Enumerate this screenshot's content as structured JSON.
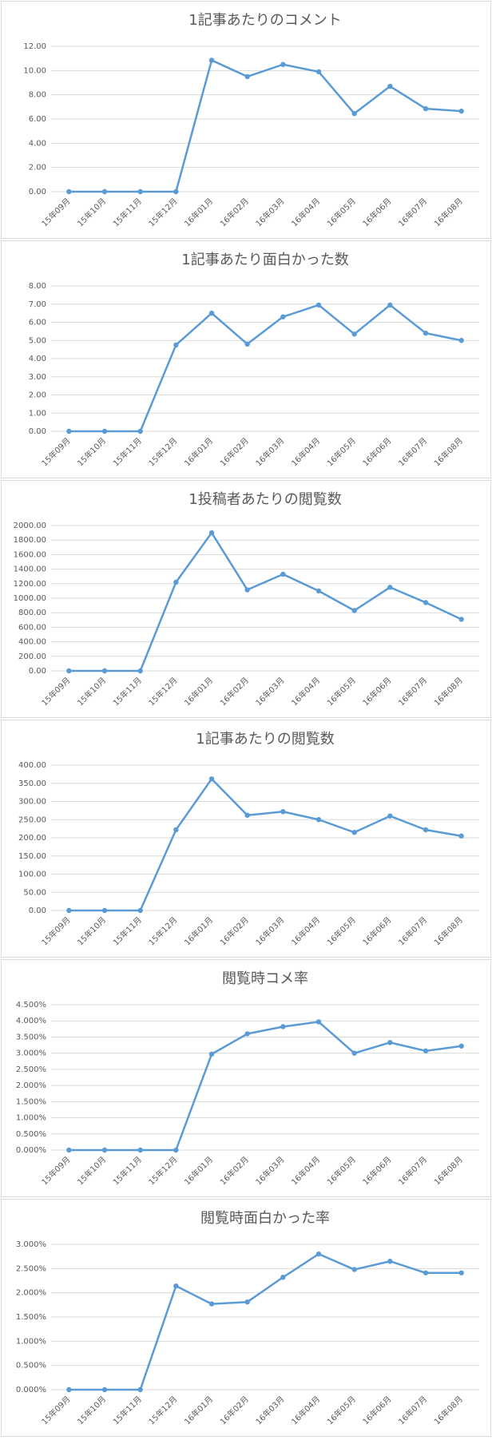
{
  "chart_data": [
    {
      "type": "line",
      "title": "1記事あたりのコメント",
      "color": "#5b9bd5",
      "grid": true,
      "categories": [
        "15年09月",
        "15年10月",
        "15年11月",
        "15年12月",
        "16年01月",
        "16年02月",
        "16年03月",
        "16年04月",
        "16年05月",
        "16年06月",
        "16年07月",
        "16年08月"
      ],
      "values": [
        0,
        0,
        0,
        0,
        10.85,
        9.5,
        10.5,
        9.9,
        6.45,
        8.7,
        6.85,
        6.65
      ],
      "ylim": [
        0,
        12
      ],
      "yticks": [
        {
          "value": 0,
          "label": "0.00"
        },
        {
          "value": 2,
          "label": "2.00"
        },
        {
          "value": 4,
          "label": "4.00"
        },
        {
          "value": 6,
          "label": "6.00"
        },
        {
          "value": 8,
          "label": "8.00"
        },
        {
          "value": 10,
          "label": "10.00"
        },
        {
          "value": 12,
          "label": "12.00"
        }
      ]
    },
    {
      "type": "line",
      "title": "1記事あたり面白かった数",
      "color": "#5b9bd5",
      "grid": true,
      "categories": [
        "15年09月",
        "15年10月",
        "15年11月",
        "15年12月",
        "16年01月",
        "16年02月",
        "16年03月",
        "16年04月",
        "16年05月",
        "16年06月",
        "16年07月",
        "16年08月"
      ],
      "values": [
        0,
        0,
        0,
        4.75,
        6.5,
        4.8,
        6.3,
        6.95,
        5.35,
        6.95,
        5.4,
        5.0
      ],
      "ylim": [
        0,
        8
      ],
      "yticks": [
        {
          "value": 0,
          "label": "0.00"
        },
        {
          "value": 1,
          "label": "1.00"
        },
        {
          "value": 2,
          "label": "2.00"
        },
        {
          "value": 3,
          "label": "3.00"
        },
        {
          "value": 4,
          "label": "4.00"
        },
        {
          "value": 5,
          "label": "5.00"
        },
        {
          "value": 6,
          "label": "6.00"
        },
        {
          "value": 7,
          "label": "7.00"
        },
        {
          "value": 8,
          "label": "8.00"
        }
      ]
    },
    {
      "type": "line",
      "title": "1投稿者あたりの閲覧数",
      "color": "#5b9bd5",
      "grid": true,
      "categories": [
        "15年09月",
        "15年10月",
        "15年11月",
        "15年12月",
        "16年01月",
        "16年02月",
        "16年03月",
        "16年04月",
        "16年05月",
        "16年06月",
        "16年07月",
        "16年08月"
      ],
      "values": [
        0,
        0,
        0,
        1220,
        1900,
        1115,
        1330,
        1100,
        830,
        1150,
        940,
        710
      ],
      "ylim": [
        0,
        2000
      ],
      "yticks": [
        {
          "value": 0,
          "label": "0.00"
        },
        {
          "value": 200,
          "label": "200.00"
        },
        {
          "value": 400,
          "label": "400.00"
        },
        {
          "value": 600,
          "label": "600.00"
        },
        {
          "value": 800,
          "label": "800.00"
        },
        {
          "value": 1000,
          "label": "1000.00"
        },
        {
          "value": 1200,
          "label": "1200.00"
        },
        {
          "value": 1400,
          "label": "1400.00"
        },
        {
          "value": 1600,
          "label": "1600.00"
        },
        {
          "value": 1800,
          "label": "1800.00"
        },
        {
          "value": 2000,
          "label": "2000.00"
        }
      ]
    },
    {
      "type": "line",
      "title": "1記事あたりの閲覧数",
      "color": "#5b9bd5",
      "grid": true,
      "categories": [
        "15年09月",
        "15年10月",
        "15年11月",
        "15年12月",
        "16年01月",
        "16年02月",
        "16年03月",
        "16年04月",
        "16年05月",
        "16年06月",
        "16年07月",
        "16年08月"
      ],
      "values": [
        0,
        0,
        0,
        222,
        362,
        262,
        272,
        250,
        215,
        260,
        222,
        205
      ],
      "ylim": [
        0,
        400
      ],
      "yticks": [
        {
          "value": 0,
          "label": "0.00"
        },
        {
          "value": 50,
          "label": "50.00"
        },
        {
          "value": 100,
          "label": "100.00"
        },
        {
          "value": 150,
          "label": "150.00"
        },
        {
          "value": 200,
          "label": "200.00"
        },
        {
          "value": 250,
          "label": "250.00"
        },
        {
          "value": 300,
          "label": "300.00"
        },
        {
          "value": 350,
          "label": "350.00"
        },
        {
          "value": 400,
          "label": "400.00"
        }
      ]
    },
    {
      "type": "line",
      "title": "閲覧時コメ率",
      "color": "#5b9bd5",
      "grid": true,
      "categories": [
        "15年09月",
        "15年10月",
        "15年11月",
        "15年12月",
        "16年01月",
        "16年02月",
        "16年03月",
        "16年04月",
        "16年05月",
        "16年06月",
        "16年07月",
        "16年08月"
      ],
      "values": [
        0,
        0,
        0,
        0,
        2.97,
        3.6,
        3.82,
        3.97,
        3.0,
        3.33,
        3.07,
        3.22
      ],
      "ylim": [
        0,
        4.5
      ],
      "yticks": [
        {
          "value": 0,
          "label": "0.000%"
        },
        {
          "value": 0.5,
          "label": "0.500%"
        },
        {
          "value": 1,
          "label": "1.000%"
        },
        {
          "value": 1.5,
          "label": "1.500%"
        },
        {
          "value": 2,
          "label": "2.000%"
        },
        {
          "value": 2.5,
          "label": "2.500%"
        },
        {
          "value": 3,
          "label": "3.000%"
        },
        {
          "value": 3.5,
          "label": "3.500%"
        },
        {
          "value": 4,
          "label": "4.000%"
        },
        {
          "value": 4.5,
          "label": "4.500%"
        }
      ]
    },
    {
      "type": "line",
      "title": "閲覧時面白かった率",
      "color": "#5b9bd5",
      "grid": true,
      "categories": [
        "15年09月",
        "15年10月",
        "15年11月",
        "15年12月",
        "16年01月",
        "16年02月",
        "16年03月",
        "16年04月",
        "16年05月",
        "16年06月",
        "16年07月",
        "16年08月"
      ],
      "values": [
        0,
        0,
        0,
        2.14,
        1.77,
        1.81,
        2.32,
        2.8,
        2.48,
        2.65,
        2.41,
        2.41
      ],
      "ylim": [
        0,
        3
      ],
      "yticks": [
        {
          "value": 0,
          "label": "0.000%"
        },
        {
          "value": 0.5,
          "label": "0.500%"
        },
        {
          "value": 1,
          "label": "1.000%"
        },
        {
          "value": 1.5,
          "label": "1.500%"
        },
        {
          "value": 2,
          "label": "2.000%"
        },
        {
          "value": 2.5,
          "label": "2.500%"
        },
        {
          "value": 3,
          "label": "3.000%"
        }
      ]
    }
  ]
}
